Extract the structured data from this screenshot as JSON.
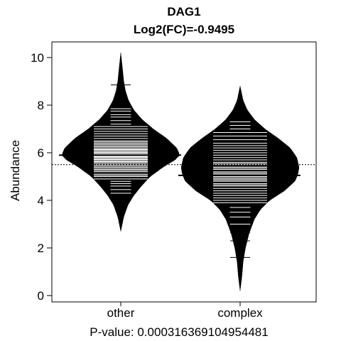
{
  "chart_data": {
    "type": "beanplot",
    "title": "DAG1",
    "subtitle": "Log2(FC)=-0.9495",
    "ylabel": "Abundance",
    "xlabel": "P-value: 0.000316369104954481",
    "ylim": [
      0,
      10.5
    ],
    "yticks": [
      0,
      2,
      4,
      6,
      8,
      10
    ],
    "overall_mean": 5.5,
    "grid": false,
    "legend": "none",
    "categories": [
      "other",
      "complex"
    ],
    "series": [
      {
        "category": "other",
        "mean": 5.9,
        "min": 2.7,
        "max": 10.2,
        "density": [
          [
            2.7,
            0.0
          ],
          [
            3.3,
            0.05
          ],
          [
            3.8,
            0.12
          ],
          [
            4.2,
            0.22
          ],
          [
            4.6,
            0.35
          ],
          [
            5.0,
            0.5
          ],
          [
            5.4,
            0.72
          ],
          [
            5.7,
            0.92
          ],
          [
            5.9,
            1.0
          ],
          [
            6.2,
            0.95
          ],
          [
            6.6,
            0.78
          ],
          [
            7.0,
            0.55
          ],
          [
            7.4,
            0.36
          ],
          [
            7.8,
            0.22
          ],
          [
            8.2,
            0.13
          ],
          [
            8.6,
            0.08
          ],
          [
            9.0,
            0.05
          ],
          [
            9.5,
            0.03
          ],
          [
            10.2,
            0.0
          ]
        ],
        "observations": [
          4.3,
          4.45,
          4.6,
          4.7,
          4.8,
          4.9,
          5.0,
          5.05,
          5.1,
          5.2,
          5.25,
          5.3,
          5.35,
          5.4,
          5.45,
          5.5,
          5.55,
          5.6,
          5.62,
          5.65,
          5.7,
          5.72,
          5.75,
          5.8,
          5.82,
          5.85,
          5.9,
          5.92,
          5.95,
          6.0,
          6.02,
          6.05,
          6.1,
          6.12,
          6.15,
          6.2,
          6.25,
          6.3,
          6.35,
          6.4,
          6.45,
          6.5,
          6.6,
          6.7,
          6.8,
          6.9,
          7.0,
          7.1,
          7.2,
          7.35,
          7.5,
          7.6,
          7.75,
          7.85,
          8.85
        ]
      },
      {
        "category": "complex",
        "mean": 5.05,
        "min": 0.2,
        "max": 8.8,
        "density": [
          [
            0.2,
            0.0
          ],
          [
            0.8,
            0.03
          ],
          [
            1.4,
            0.05
          ],
          [
            2.0,
            0.09
          ],
          [
            2.6,
            0.15
          ],
          [
            3.2,
            0.24
          ],
          [
            3.6,
            0.34
          ],
          [
            4.0,
            0.5
          ],
          [
            4.4,
            0.75
          ],
          [
            4.8,
            0.93
          ],
          [
            5.1,
            0.98
          ],
          [
            5.4,
            1.0
          ],
          [
            5.8,
            0.96
          ],
          [
            6.2,
            0.85
          ],
          [
            6.6,
            0.65
          ],
          [
            7.0,
            0.42
          ],
          [
            7.4,
            0.24
          ],
          [
            7.8,
            0.12
          ],
          [
            8.2,
            0.05
          ],
          [
            8.8,
            0.0
          ]
        ],
        "observations": [
          1.6,
          2.3,
          2.65,
          3.0,
          3.3,
          3.5,
          3.7,
          3.9,
          4.0,
          4.1,
          4.2,
          4.3,
          4.4,
          4.5,
          4.6,
          4.65,
          4.7,
          4.8,
          4.85,
          4.9,
          4.95,
          5.0,
          5.05,
          5.1,
          5.15,
          5.2,
          5.3,
          5.35,
          5.4,
          5.5,
          5.55,
          5.6,
          5.7,
          5.8,
          5.9,
          6.0,
          6.1,
          6.2,
          6.3,
          6.4,
          6.55,
          6.7,
          6.85,
          7.0,
          7.15,
          7.3
        ]
      }
    ]
  }
}
